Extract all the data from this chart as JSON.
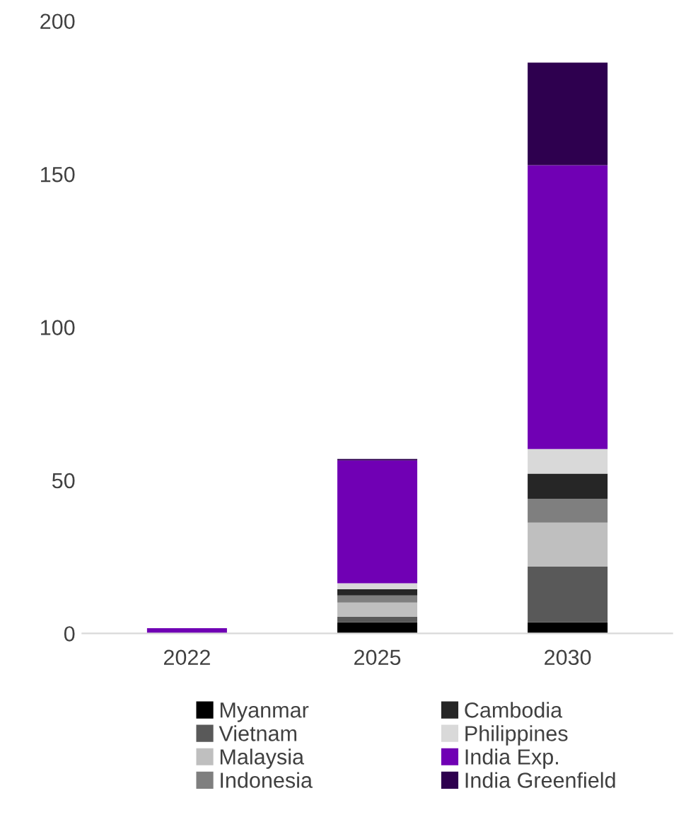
{
  "chart_data": {
    "type": "bar",
    "stacked": true,
    "categories": [
      "2022",
      "2025",
      "2030"
    ],
    "ylim": [
      0,
      200
    ],
    "yticks": [
      0,
      50,
      100,
      150,
      200
    ],
    "grid": false,
    "legend": "bottom",
    "series": [
      {
        "name": "Myanmar",
        "color": "#000000",
        "values": [
          0,
          3.6,
          3.6
        ]
      },
      {
        "name": "Vietnam",
        "color": "#595959",
        "values": [
          0,
          1.8,
          18.2
        ]
      },
      {
        "name": "Malaysia",
        "color": "#bfbfbf",
        "values": [
          0,
          4.7,
          14.4
        ]
      },
      {
        "name": "Indonesia",
        "color": "#7f7f7f",
        "values": [
          0,
          2.3,
          7.8
        ]
      },
      {
        "name": "Cambodia",
        "color": "#262626",
        "values": [
          0,
          2.0,
          8.2
        ]
      },
      {
        "name": "Philippines",
        "color": "#d9d9d9",
        "values": [
          0,
          2.0,
          8.0
        ]
      },
      {
        "name": "India Exp.",
        "color": "#7000b4",
        "values": [
          1.7,
          40.1,
          92.7
        ]
      },
      {
        "name": "India Greenfield",
        "color": "#2e004f",
        "values": [
          0,
          0.5,
          33.5
        ]
      }
    ]
  }
}
